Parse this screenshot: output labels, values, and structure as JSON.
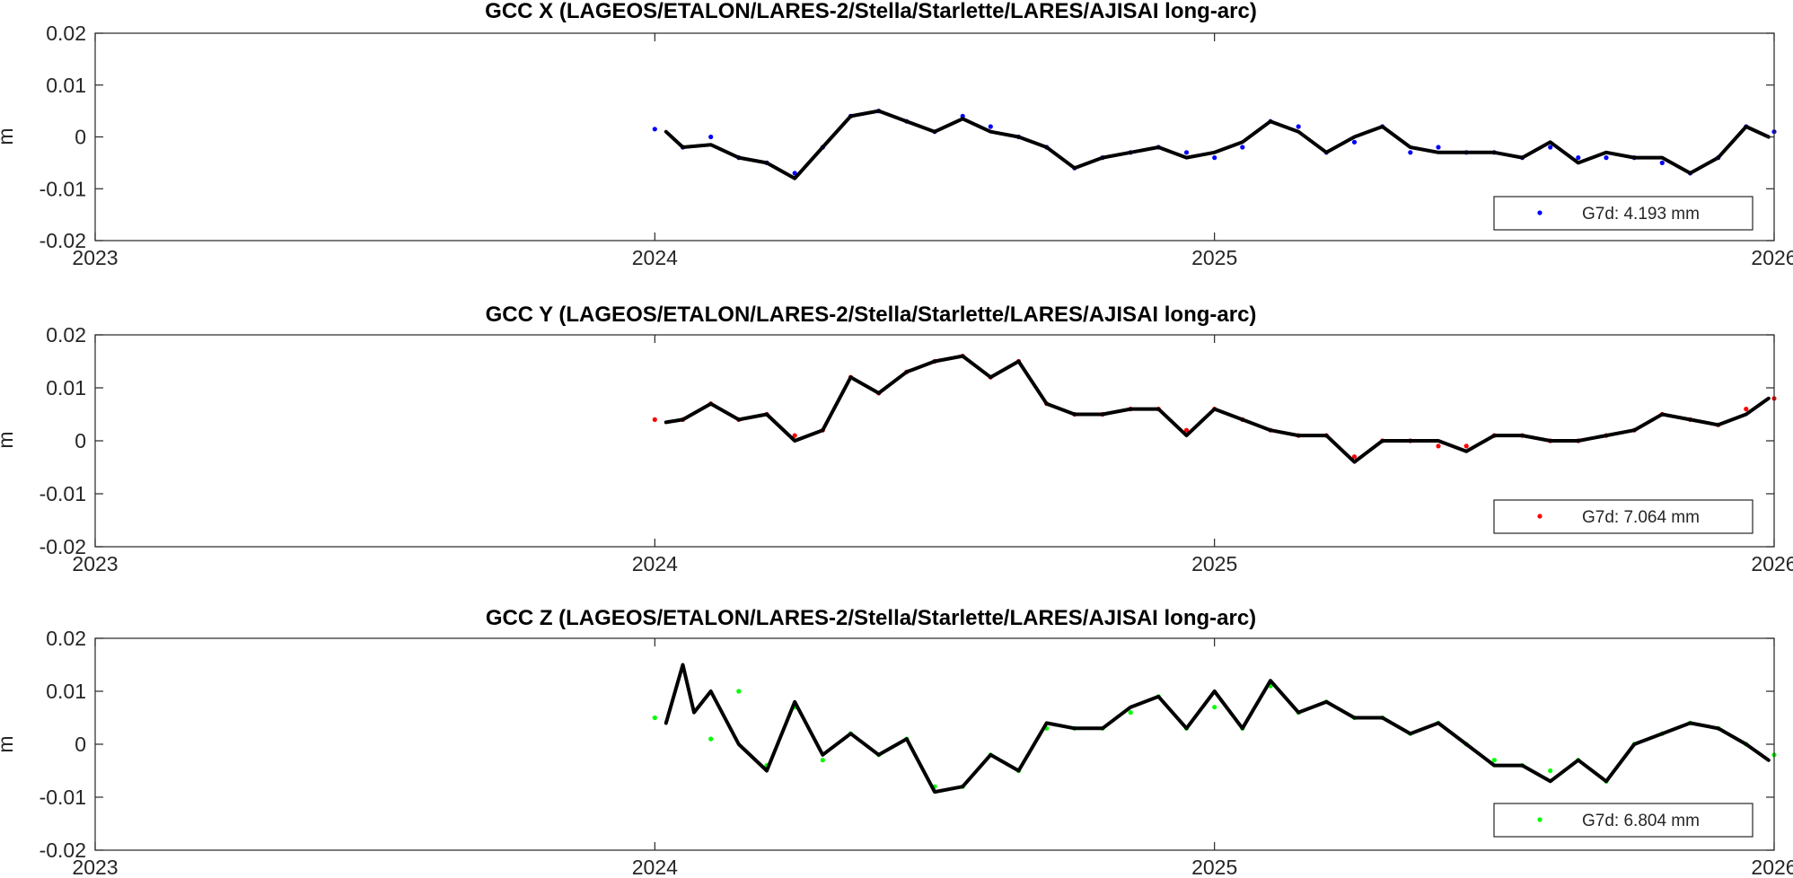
{
  "figure": {
    "series_colors": {
      "X": "#0000ff",
      "Y": "#ff0000",
      "Z": "#00ff00"
    },
    "smooth_color": "#000000"
  },
  "chart_data": [
    {
      "type": "scatter",
      "title": "GCC X (LAGEOS/ETALON/LARES-2/Stella/Starlette/LARES/AJISAI long-arc)",
      "xlabel": "",
      "ylabel": "m",
      "xlim": [
        2023,
        2026
      ],
      "ylim": [
        -0.02,
        0.02
      ],
      "xticks": [
        "2023",
        "2024",
        "2025",
        "2026"
      ],
      "yticks": [
        "0.02",
        "0.01",
        "0",
        "-0.01",
        "-0.02"
      ],
      "grid": false,
      "legend": {
        "position": "bottom-right",
        "entry": "G7d: 4.193 mm"
      },
      "series": [
        {
          "name": "G7d: 4.193 mm",
          "color": "#0000ff",
          "marker": "dot",
          "x": [
            2024.0,
            2024.05,
            2024.1,
            2024.15,
            2024.2,
            2024.25,
            2024.3,
            2024.35,
            2024.4,
            2024.45,
            2024.5,
            2024.55,
            2024.6,
            2024.65,
            2024.7,
            2024.75,
            2024.8,
            2024.85,
            2024.9,
            2024.95,
            2025.0,
            2025.05,
            2025.1,
            2025.15,
            2025.2,
            2025.25,
            2025.3,
            2025.35,
            2025.4,
            2025.45,
            2025.5,
            2025.55,
            2025.6,
            2025.65,
            2025.7,
            2025.75,
            2025.8,
            2025.85,
            2025.9,
            2025.95,
            2026.0
          ],
          "y": [
            0.0015,
            -0.002,
            0.0,
            -0.004,
            -0.005,
            -0.007,
            -0.002,
            0.004,
            0.005,
            0.003,
            0.001,
            0.004,
            0.002,
            0.0,
            -0.002,
            -0.006,
            -0.004,
            -0.003,
            -0.002,
            -0.003,
            -0.004,
            -0.002,
            0.003,
            0.002,
            -0.003,
            -0.001,
            0.002,
            -0.003,
            -0.002,
            -0.003,
            -0.003,
            -0.004,
            -0.002,
            -0.004,
            -0.004,
            -0.004,
            -0.005,
            -0.007,
            -0.004,
            0.002,
            0.001
          ]
        },
        {
          "name": "",
          "color": "#000000",
          "line": "solid",
          "x": [
            2024.02,
            2024.05,
            2024.1,
            2024.15,
            2024.2,
            2024.25,
            2024.3,
            2024.35,
            2024.4,
            2024.45,
            2024.5,
            2024.55,
            2024.6,
            2024.65,
            2024.7,
            2024.75,
            2024.8,
            2024.85,
            2024.9,
            2024.95,
            2025.0,
            2025.05,
            2025.1,
            2025.15,
            2025.2,
            2025.25,
            2025.3,
            2025.35,
            2025.4,
            2025.45,
            2025.5,
            2025.55,
            2025.6,
            2025.65,
            2025.7,
            2025.75,
            2025.8,
            2025.85,
            2025.9,
            2025.95,
            2025.99
          ],
          "y": [
            0.001,
            -0.002,
            -0.0015,
            -0.004,
            -0.005,
            -0.008,
            -0.002,
            0.004,
            0.005,
            0.003,
            0.001,
            0.0035,
            0.001,
            0.0,
            -0.002,
            -0.006,
            -0.004,
            -0.003,
            -0.002,
            -0.004,
            -0.003,
            -0.001,
            0.003,
            0.001,
            -0.003,
            0.0,
            0.002,
            -0.002,
            -0.003,
            -0.003,
            -0.003,
            -0.004,
            -0.001,
            -0.005,
            -0.003,
            -0.004,
            -0.004,
            -0.007,
            -0.004,
            0.002,
            0.0
          ]
        }
      ]
    },
    {
      "type": "scatter",
      "title": "GCC Y (LAGEOS/ETALON/LARES-2/Stella/Starlette/LARES/AJISAI long-arc)",
      "xlabel": "",
      "ylabel": "m",
      "xlim": [
        2023,
        2026
      ],
      "ylim": [
        -0.02,
        0.02
      ],
      "xticks": [
        "2023",
        "2024",
        "2025",
        "2026"
      ],
      "yticks": [
        "0.02",
        "0.01",
        "0",
        "-0.01",
        "-0.02"
      ],
      "grid": false,
      "legend": {
        "position": "bottom-right",
        "entry": "G7d: 7.064 mm"
      },
      "series": [
        {
          "name": "G7d: 7.064 mm",
          "color": "#ff0000",
          "marker": "dot",
          "x": [
            2024.0,
            2024.05,
            2024.1,
            2024.15,
            2024.2,
            2024.25,
            2024.3,
            2024.35,
            2024.4,
            2024.45,
            2024.5,
            2024.55,
            2024.6,
            2024.65,
            2024.7,
            2024.75,
            2024.8,
            2024.85,
            2024.9,
            2024.95,
            2025.0,
            2025.05,
            2025.1,
            2025.15,
            2025.2,
            2025.25,
            2025.3,
            2025.35,
            2025.4,
            2025.45,
            2025.5,
            2025.55,
            2025.6,
            2025.65,
            2025.7,
            2025.75,
            2025.8,
            2025.85,
            2025.9,
            2025.95,
            2026.0
          ],
          "y": [
            0.004,
            0.004,
            0.007,
            0.004,
            0.005,
            0.001,
            0.002,
            0.012,
            0.009,
            0.013,
            0.015,
            0.016,
            0.012,
            0.015,
            0.007,
            0.005,
            0.005,
            0.006,
            0.006,
            0.002,
            0.006,
            0.004,
            0.002,
            0.001,
            0.001,
            -0.003,
            0.0,
            0.0,
            -0.001,
            -0.001,
            0.001,
            0.001,
            0.0,
            0.0,
            0.001,
            0.002,
            0.005,
            0.004,
            0.003,
            0.006,
            0.008
          ]
        },
        {
          "name": "",
          "color": "#000000",
          "line": "solid",
          "x": [
            2024.02,
            2024.05,
            2024.1,
            2024.15,
            2024.2,
            2024.25,
            2024.3,
            2024.35,
            2024.4,
            2024.45,
            2024.5,
            2024.55,
            2024.6,
            2024.65,
            2024.7,
            2024.75,
            2024.8,
            2024.85,
            2024.9,
            2024.95,
            2025.0,
            2025.05,
            2025.1,
            2025.15,
            2025.2,
            2025.25,
            2025.3,
            2025.35,
            2025.4,
            2025.45,
            2025.5,
            2025.55,
            2025.6,
            2025.65,
            2025.7,
            2025.75,
            2025.8,
            2025.85,
            2025.9,
            2025.95,
            2025.99
          ],
          "y": [
            0.0035,
            0.004,
            0.007,
            0.004,
            0.005,
            0.0,
            0.002,
            0.012,
            0.009,
            0.013,
            0.015,
            0.016,
            0.012,
            0.015,
            0.007,
            0.005,
            0.005,
            0.006,
            0.006,
            0.001,
            0.006,
            0.004,
            0.002,
            0.001,
            0.001,
            -0.004,
            0.0,
            0.0,
            0.0,
            -0.002,
            0.001,
            0.001,
            0.0,
            0.0,
            0.001,
            0.002,
            0.005,
            0.004,
            0.003,
            0.005,
            0.008
          ]
        }
      ]
    },
    {
      "type": "scatter",
      "title": "GCC Z (LAGEOS/ETALON/LARES-2/Stella/Starlette/LARES/AJISAI long-arc)",
      "xlabel": "",
      "ylabel": "m",
      "xlim": [
        2023,
        2026
      ],
      "ylim": [
        -0.02,
        0.02
      ],
      "xticks": [
        "2023",
        "2024",
        "2025",
        "2026"
      ],
      "yticks": [
        "0.02",
        "0.01",
        "0",
        "-0.01",
        "-0.02"
      ],
      "grid": false,
      "legend": {
        "position": "bottom-right",
        "entry": "G7d: 6.804 mm"
      },
      "series": [
        {
          "name": "G7d: 6.804 mm",
          "color": "#00ff00",
          "marker": "dot",
          "x": [
            2024.0,
            2024.05,
            2024.1,
            2024.15,
            2024.2,
            2024.25,
            2024.3,
            2024.35,
            2024.4,
            2024.45,
            2024.5,
            2024.55,
            2024.6,
            2024.65,
            2024.7,
            2024.75,
            2024.8,
            2024.85,
            2024.9,
            2024.95,
            2025.0,
            2025.05,
            2025.1,
            2025.15,
            2025.2,
            2025.25,
            2025.3,
            2025.35,
            2025.4,
            2025.45,
            2025.5,
            2025.55,
            2025.6,
            2025.65,
            2025.7,
            2025.75,
            2025.8,
            2025.85,
            2025.9,
            2025.95,
            2026.0
          ],
          "y": [
            0.005,
            0.014,
            0.001,
            0.01,
            -0.004,
            0.007,
            -0.003,
            0.002,
            -0.002,
            0.001,
            -0.008,
            -0.008,
            -0.002,
            -0.005,
            0.003,
            0.003,
            0.003,
            0.006,
            0.009,
            0.003,
            0.007,
            0.003,
            0.011,
            0.006,
            0.008,
            0.005,
            0.005,
            0.002,
            0.004,
            0.0,
            -0.003,
            -0.004,
            -0.005,
            -0.003,
            -0.007,
            0.0,
            0.002,
            0.004,
            0.003,
            0.0,
            -0.002
          ]
        },
        {
          "name": "",
          "color": "#000000",
          "line": "solid",
          "x": [
            2024.02,
            2024.05,
            2024.07,
            2024.1,
            2024.15,
            2024.2,
            2024.25,
            2024.3,
            2024.35,
            2024.4,
            2024.45,
            2024.5,
            2024.55,
            2024.6,
            2024.65,
            2024.7,
            2024.75,
            2024.8,
            2024.85,
            2024.9,
            2024.95,
            2025.0,
            2025.05,
            2025.1,
            2025.15,
            2025.2,
            2025.25,
            2025.3,
            2025.35,
            2025.4,
            2025.45,
            2025.5,
            2025.55,
            2025.6,
            2025.65,
            2025.7,
            2025.75,
            2025.8,
            2025.85,
            2025.9,
            2025.95,
            2025.99
          ],
          "y": [
            0.004,
            0.015,
            0.006,
            0.01,
            0.0,
            -0.005,
            0.008,
            -0.002,
            0.002,
            -0.002,
            0.001,
            -0.009,
            -0.008,
            -0.002,
            -0.005,
            0.004,
            0.003,
            0.003,
            0.007,
            0.009,
            0.003,
            0.01,
            0.003,
            0.012,
            0.006,
            0.008,
            0.005,
            0.005,
            0.002,
            0.004,
            0.0,
            -0.004,
            -0.004,
            -0.007,
            -0.003,
            -0.007,
            0.0,
            0.002,
            0.004,
            0.003,
            0.0,
            -0.003
          ]
        }
      ]
    }
  ]
}
